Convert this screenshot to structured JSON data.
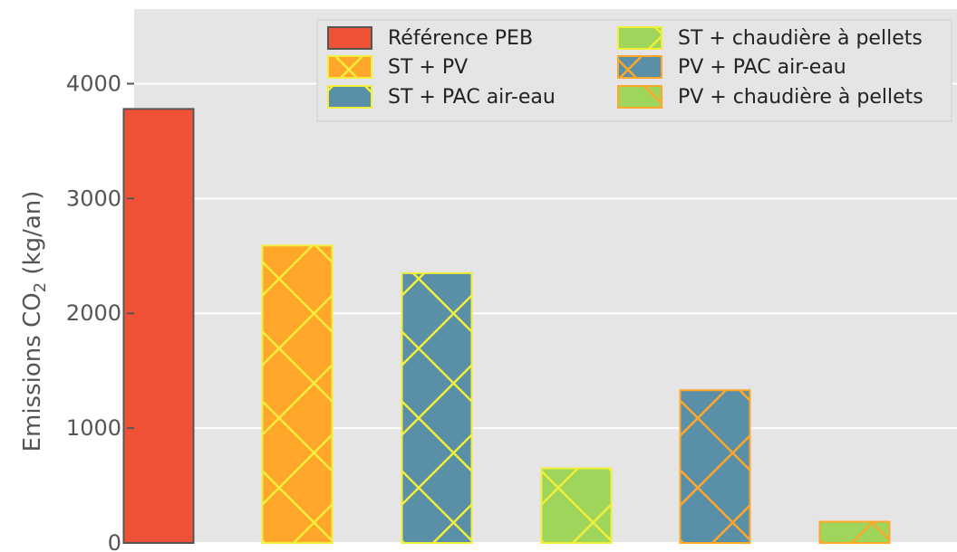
{
  "chart_data": {
    "type": "bar",
    "ylabel_main": "Emissions CO",
    "ylabel_sub": "2",
    "ylabel_unit": " (kg/an)",
    "ylim": [
      0,
      4650
    ],
    "yticks": [
      0,
      1000,
      2000,
      3000,
      4000
    ],
    "grid": true,
    "legend_position": "top-right",
    "series": [
      {
        "name": "Référence PEB",
        "value": 3780,
        "color": "#f05237",
        "edge": "#555555",
        "hatch": "none",
        "hatch_color": ""
      },
      {
        "name": "ST + PV",
        "value": 2590,
        "color": "#ffa62b",
        "edge": "#f2ef3a",
        "hatch": "x",
        "hatch_color": "#f2ef3a"
      },
      {
        "name": "ST + PAC air-eau",
        "value": 2350,
        "color": "#5a8fa8",
        "edge": "#f2ef3a",
        "hatch": "x",
        "hatch_color": "#f2ef3a"
      },
      {
        "name": "ST + chaudière à pellets",
        "value": 650,
        "color": "#9ed55a",
        "edge": "#f2ef3a",
        "hatch": "x",
        "hatch_color": "#f2ef3a"
      },
      {
        "name": "PV + PAC air-eau",
        "value": 1330,
        "color": "#5a8fa8",
        "edge": "#ffa62b",
        "hatch": "x",
        "hatch_color": "#ffa62b"
      },
      {
        "name": "PV + chaudière à pellets",
        "value": 185,
        "color": "#9ed55a",
        "edge": "#ffa62b",
        "hatch": "x",
        "hatch_color": "#ffa62b"
      }
    ]
  }
}
